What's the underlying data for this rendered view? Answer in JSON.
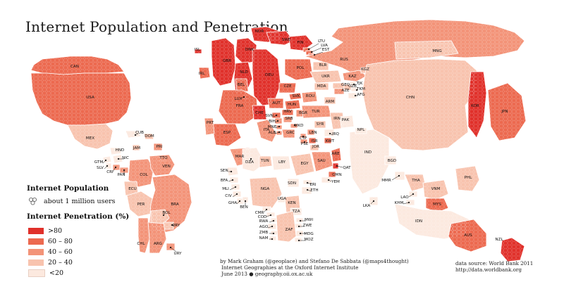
{
  "title": "Internet Population and Penetration",
  "colors": {
    "gt80": "#e0302a",
    "60_80": "#ec694f",
    "40_60": "#f39378",
    "20_40": "#f8c3ae",
    "lt20": "#fce9df",
    "ocean": "#ffffff"
  },
  "legend": {
    "population_title": "Internet Population",
    "population_item": "about 1 million users",
    "penetration_title": "Internet Penetration (%)",
    "classes": [
      ">80",
      "60 – 80",
      "40 – 60",
      "20 – 40",
      "<20"
    ]
  },
  "credits": {
    "line1": "by Mark Graham (@geoplace) and Stefano De Sabbata (@maps4thought)",
    "line2": "Internet Geographies at the Oxford Internet Institute",
    "line3": "June 2013 ● geography.oii.ox.ac.uk"
  },
  "source": {
    "line1": "data source: World Bank 2011",
    "line2": "http://data.worldbank.org"
  },
  "countries": [
    {
      "code": "CAN",
      "class": "60_80"
    },
    {
      "code": "USA",
      "class": "60_80"
    },
    {
      "code": "MEX",
      "class": "20_40"
    },
    {
      "code": "CUB",
      "class": "lt20"
    },
    {
      "code": "DOM",
      "class": "20_40"
    },
    {
      "code": "PRI",
      "class": "40_60"
    },
    {
      "code": "HND",
      "class": "lt20"
    },
    {
      "code": "JAM",
      "class": "20_40"
    },
    {
      "code": "TTO",
      "class": "40_60"
    },
    {
      "code": "GTM",
      "class": "lt20"
    },
    {
      "code": "SLV",
      "class": "lt20"
    },
    {
      "code": "NIC",
      "class": "lt20"
    },
    {
      "code": "CRI",
      "class": "40_60"
    },
    {
      "code": "PAN",
      "class": "40_60"
    },
    {
      "code": "COL",
      "class": "40_60"
    },
    {
      "code": "VEN",
      "class": "40_60"
    },
    {
      "code": "ECU",
      "class": "20_40"
    },
    {
      "code": "PER",
      "class": "20_40"
    },
    {
      "code": "BRA",
      "class": "40_60"
    },
    {
      "code": "BOL",
      "class": "20_40"
    },
    {
      "code": "PRY",
      "class": "20_40"
    },
    {
      "code": "CHL",
      "class": "40_60"
    },
    {
      "code": "ARG",
      "class": "40_60"
    },
    {
      "code": "URY",
      "class": "40_60"
    },
    {
      "code": "ISL",
      "class": "gt80"
    },
    {
      "code": "IRL",
      "class": "60_80"
    },
    {
      "code": "GBR",
      "class": "gt80"
    },
    {
      "code": "NOR",
      "class": "gt80"
    },
    {
      "code": "SWE",
      "class": "gt80"
    },
    {
      "code": "FIN",
      "class": "gt80"
    },
    {
      "code": "DNK",
      "class": "gt80"
    },
    {
      "code": "NLD",
      "class": "gt80"
    },
    {
      "code": "DEU",
      "class": "gt80"
    },
    {
      "code": "BEL",
      "class": "60_80"
    },
    {
      "code": "LUX",
      "class": "gt80"
    },
    {
      "code": "FRA",
      "class": "60_80"
    },
    {
      "code": "CHE",
      "class": "gt80"
    },
    {
      "code": "AUT",
      "class": "60_80"
    },
    {
      "code": "CZE",
      "class": "60_80"
    },
    {
      "code": "POL",
      "class": "60_80"
    },
    {
      "code": "LTU",
      "class": "60_80"
    },
    {
      "code": "LVA",
      "class": "60_80"
    },
    {
      "code": "EST",
      "class": "60_80"
    },
    {
      "code": "BLR",
      "class": "20_40"
    },
    {
      "code": "UKR",
      "class": "20_40"
    },
    {
      "code": "MDA",
      "class": "20_40"
    },
    {
      "code": "RUS",
      "class": "40_60"
    },
    {
      "code": "KAZ",
      "class": "40_60"
    },
    {
      "code": "KGZ",
      "class": "20_40"
    },
    {
      "code": "GEO",
      "class": "20_40"
    },
    {
      "code": "AZE",
      "class": "40_60"
    },
    {
      "code": "ARM",
      "class": "20_40"
    },
    {
      "code": "UZB",
      "class": "20_40"
    },
    {
      "code": "TJK",
      "class": "lt20"
    },
    {
      "code": "TKM",
      "class": "lt20"
    },
    {
      "code": "AFG",
      "class": "lt20"
    },
    {
      "code": "SVK",
      "class": "60_80"
    },
    {
      "code": "HUN",
      "class": "60_80"
    },
    {
      "code": "ROU",
      "class": "40_60"
    },
    {
      "code": "BGR",
      "class": "40_60"
    },
    {
      "code": "HRV",
      "class": "60_80"
    },
    {
      "code": "SVN",
      "class": "60_80"
    },
    {
      "code": "SRB",
      "class": "40_60"
    },
    {
      "code": "BIH",
      "class": "40_60"
    },
    {
      "code": "MNE",
      "class": "40_60"
    },
    {
      "code": "ALB",
      "class": "40_60"
    },
    {
      "code": "MKD",
      "class": "40_60"
    },
    {
      "code": "GRC",
      "class": "40_60"
    },
    {
      "code": "ITA",
      "class": "40_60"
    },
    {
      "code": "ESP",
      "class": "60_80"
    },
    {
      "code": "PRT",
      "class": "40_60"
    },
    {
      "code": "TUR",
      "class": "40_60"
    },
    {
      "code": "CYP",
      "class": "40_60"
    },
    {
      "code": "SYR",
      "class": "20_40"
    },
    {
      "code": "LBN",
      "class": "40_60"
    },
    {
      "code": "PSE",
      "class": "40_60"
    },
    {
      "code": "ISR",
      "class": "60_80"
    },
    {
      "code": "JOR",
      "class": "20_40"
    },
    {
      "code": "IRQ",
      "class": "lt20"
    },
    {
      "code": "IRN",
      "class": "20_40"
    },
    {
      "code": "KWT",
      "class": "60_80"
    },
    {
      "code": "SAU",
      "class": "40_60"
    },
    {
      "code": "ARE",
      "class": "60_80"
    },
    {
      "code": "QAT",
      "class": "gt80"
    },
    {
      "code": "OMN",
      "class": "60_80"
    },
    {
      "code": "YEM",
      "class": "lt20"
    },
    {
      "code": "PAK",
      "class": "lt20"
    },
    {
      "code": "IND",
      "class": "lt20"
    },
    {
      "code": "NPL",
      "class": "lt20"
    },
    {
      "code": "BGD",
      "class": "lt20"
    },
    {
      "code": "LKA",
      "class": "lt20"
    },
    {
      "code": "CHN",
      "class": "20_40"
    },
    {
      "code": "MNG",
      "class": "20_40"
    },
    {
      "code": "KOR",
      "class": "gt80"
    },
    {
      "code": "JPN",
      "class": "60_80"
    },
    {
      "code": "MMR",
      "class": "lt20"
    },
    {
      "code": "THA",
      "class": "20_40"
    },
    {
      "code": "LAO",
      "class": "lt20"
    },
    {
      "code": "KHM",
      "class": "lt20"
    },
    {
      "code": "VNM",
      "class": "20_40"
    },
    {
      "code": "PHL",
      "class": "20_40"
    },
    {
      "code": "MYS",
      "class": "60_80"
    },
    {
      "code": "IDN",
      "class": "lt20"
    },
    {
      "code": "AUS",
      "class": "60_80"
    },
    {
      "code": "NZL",
      "class": "gt80"
    },
    {
      "code": "MAR",
      "class": "40_60"
    },
    {
      "code": "DZA",
      "class": "lt20"
    },
    {
      "code": "TUN",
      "class": "20_40"
    },
    {
      "code": "LBY",
      "class": "lt20"
    },
    {
      "code": "EGY",
      "class": "20_40"
    },
    {
      "code": "SDN",
      "class": "lt20"
    },
    {
      "code": "ERI",
      "class": "lt20"
    },
    {
      "code": "ETH",
      "class": "lt20"
    },
    {
      "code": "SEN",
      "class": "lt20"
    },
    {
      "code": "BFA",
      "class": "lt20"
    },
    {
      "code": "MLI",
      "class": "lt20"
    },
    {
      "code": "CIV",
      "class": "lt20"
    },
    {
      "code": "GHA",
      "class": "lt20"
    },
    {
      "code": "BEN",
      "class": "lt20"
    },
    {
      "code": "NGA",
      "class": "20_40"
    },
    {
      "code": "CMR",
      "class": "lt20"
    },
    {
      "code": "COD",
      "class": "lt20"
    },
    {
      "code": "RWA",
      "class": "lt20"
    },
    {
      "code": "AGO",
      "class": "lt20"
    },
    {
      "code": "ZMB",
      "class": "lt20"
    },
    {
      "code": "NAM",
      "class": "lt20"
    },
    {
      "code": "UGA",
      "class": "lt20"
    },
    {
      "code": "KEN",
      "class": "20_40"
    },
    {
      "code": "TZA",
      "class": "lt20"
    },
    {
      "code": "MWI",
      "class": "lt20"
    },
    {
      "code": "ZWE",
      "class": "lt20"
    },
    {
      "code": "MDG",
      "class": "lt20"
    },
    {
      "code": "MOZ",
      "class": "lt20"
    },
    {
      "code": "ZAF",
      "class": "20_40"
    }
  ]
}
